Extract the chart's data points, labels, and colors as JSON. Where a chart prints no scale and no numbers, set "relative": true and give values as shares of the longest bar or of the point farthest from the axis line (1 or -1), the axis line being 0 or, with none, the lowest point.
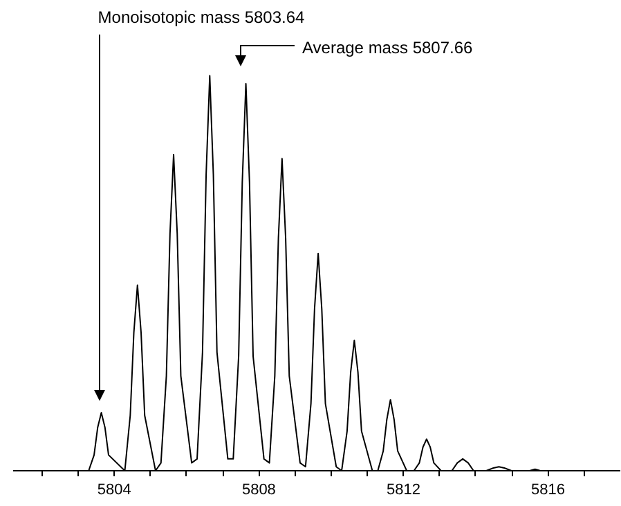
{
  "chart_data": {
    "type": "line",
    "relative": true,
    "grid": false,
    "marker": "none",
    "line_style": "solid",
    "xlim": [
      5801.2,
      5818.0
    ],
    "xticks": [
      {
        "value": 5802,
        "label": null
      },
      {
        "value": 5803,
        "label": null
      },
      5804,
      {
        "value": 5805,
        "label": null
      },
      {
        "value": 5806,
        "label": null
      },
      {
        "value": 5807,
        "label": null
      },
      5808,
      {
        "value": 5809,
        "label": null
      },
      {
        "value": 5810,
        "label": null
      },
      {
        "value": 5811,
        "label": null
      },
      5812,
      {
        "value": 5813,
        "label": null
      },
      {
        "value": 5814,
        "label": null
      },
      {
        "value": 5815,
        "label": null
      },
      5816,
      {
        "value": 5817,
        "label": null
      }
    ],
    "annotations": [
      "Monoisotopic mass 5803.64",
      "Average mass 5807.66"
    ],
    "series": [
      {
        "color": "#000000",
        "x": [
          5801.2,
          5803.29,
          5803.44,
          5803.54,
          5803.64,
          5803.74,
          5803.84,
          5804.29,
          5804.44,
          5804.54,
          5804.64,
          5804.74,
          5804.84,
          5805.14,
          5805.29,
          5805.44,
          5805.54,
          5805.64,
          5805.74,
          5805.84,
          5806.14,
          5806.29,
          5806.44,
          5806.54,
          5806.64,
          5806.74,
          5806.84,
          5807.14,
          5807.29,
          5807.44,
          5807.54,
          5807.64,
          5807.74,
          5807.84,
          5808.14,
          5808.29,
          5808.44,
          5808.54,
          5808.64,
          5808.74,
          5808.84,
          5809.14,
          5809.29,
          5809.44,
          5809.54,
          5809.64,
          5809.74,
          5809.84,
          5810.14,
          5810.29,
          5810.44,
          5810.54,
          5810.64,
          5810.74,
          5810.84,
          5811.14,
          5811.29,
          5811.44,
          5811.54,
          5811.64,
          5811.74,
          5811.84,
          5812.09,
          5812.29,
          5812.44,
          5812.54,
          5812.64,
          5812.74,
          5812.84,
          5813.04,
          5813.34,
          5813.49,
          5813.64,
          5813.79,
          5813.94,
          5814.29,
          5814.49,
          5814.64,
          5814.79,
          5814.99,
          5815.49,
          5815.64,
          5815.79,
          5818.0
        ],
        "values": [
          0,
          0,
          0.04,
          0.11,
          0.147,
          0.11,
          0.04,
          0,
          0.14,
          0.35,
          0.47,
          0.35,
          0.14,
          0,
          0.02,
          0.24,
          0.6,
          0.8,
          0.6,
          0.24,
          0.02,
          0.03,
          0.3,
          0.75,
          1,
          0.75,
          0.3,
          0.03,
          0.03,
          0.29,
          0.73,
          0.98,
          0.73,
          0.29,
          0.03,
          0.02,
          0.24,
          0.59,
          0.79,
          0.59,
          0.24,
          0.02,
          0.01,
          0.17,
          0.41,
          0.55,
          0.41,
          0.17,
          0.01,
          0,
          0.1,
          0.25,
          0.33,
          0.25,
          0.1,
          0,
          0,
          0.05,
          0.13,
          0.18,
          0.13,
          0.05,
          0,
          0,
          0.02,
          0.06,
          0.08,
          0.06,
          0.02,
          0,
          0,
          0.02,
          0.03,
          0.02,
          0,
          0,
          0.007,
          0.01,
          0.007,
          0,
          0,
          0.004,
          0,
          0
        ]
      }
    ]
  }
}
